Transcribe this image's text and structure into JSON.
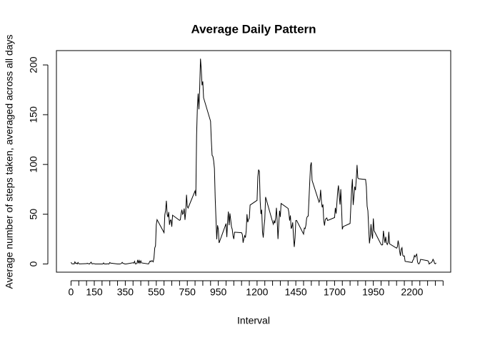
{
  "chart_data": {
    "type": "line",
    "title": "Average Daily Pattern",
    "x_label": "Interval",
    "y_label": "Average number of steps taken, averaged across all days",
    "x": [
      0,
      5,
      10,
      15,
      20,
      25,
      30,
      35,
      40,
      45,
      50,
      55,
      100,
      105,
      110,
      115,
      120,
      125,
      130,
      135,
      140,
      145,
      150,
      155,
      200,
      205,
      210,
      215,
      220,
      225,
      230,
      235,
      240,
      245,
      250,
      255,
      300,
      305,
      310,
      315,
      320,
      325,
      330,
      335,
      340,
      345,
      350,
      355,
      400,
      405,
      410,
      415,
      420,
      425,
      430,
      435,
      440,
      445,
      450,
      455,
      500,
      505,
      510,
      515,
      520,
      525,
      530,
      535,
      540,
      545,
      550,
      555,
      600,
      605,
      610,
      615,
      620,
      625,
      630,
      635,
      640,
      645,
      650,
      655,
      700,
      705,
      710,
      715,
      720,
      725,
      730,
      735,
      740,
      745,
      750,
      755,
      800,
      805,
      810,
      815,
      820,
      825,
      830,
      835,
      840,
      845,
      850,
      855,
      900,
      905,
      910,
      915,
      920,
      925,
      930,
      935,
      940,
      945,
      950,
      955,
      1000,
      1005,
      1010,
      1015,
      1020,
      1025,
      1030,
      1035,
      1040,
      1045,
      1050,
      1055,
      1100,
      1105,
      1110,
      1115,
      1120,
      1125,
      1130,
      1135,
      1140,
      1145,
      1150,
      1155,
      1200,
      1205,
      1210,
      1215,
      1220,
      1225,
      1230,
      1235,
      1240,
      1245,
      1250,
      1255,
      1300,
      1305,
      1310,
      1315,
      1320,
      1325,
      1330,
      1335,
      1340,
      1345,
      1350,
      1355,
      1400,
      1405,
      1410,
      1415,
      1420,
      1425,
      1430,
      1435,
      1440,
      1445,
      1450,
      1455,
      1500,
      1505,
      1510,
      1515,
      1520,
      1525,
      1530,
      1535,
      1540,
      1545,
      1550,
      1555,
      1600,
      1605,
      1610,
      1615,
      1620,
      1625,
      1630,
      1635,
      1640,
      1645,
      1650,
      1655,
      1700,
      1705,
      1710,
      1715,
      1720,
      1725,
      1730,
      1735,
      1740,
      1745,
      1750,
      1755,
      1800,
      1805,
      1810,
      1815,
      1820,
      1825,
      1830,
      1835,
      1840,
      1845,
      1850,
      1855,
      1900,
      1905,
      1910,
      1915,
      1920,
      1925,
      1930,
      1935,
      1940,
      1945,
      1950,
      1955,
      2000,
      2005,
      2010,
      2015,
      2020,
      2025,
      2030,
      2035,
      2040,
      2045,
      2050,
      2055,
      2100,
      2105,
      2110,
      2115,
      2120,
      2125,
      2130,
      2135,
      2140,
      2145,
      2150,
      2155,
      2200,
      2205,
      2210,
      2215,
      2220,
      2225,
      2230,
      2235,
      2240,
      2245,
      2250,
      2255,
      2300,
      2305,
      2310,
      2315,
      2320,
      2325,
      2330,
      2335,
      2340,
      2345,
      2350,
      2355
    ],
    "series": [
      {
        "color": "#000000",
        "values": [
          1.7,
          0.3,
          0.1,
          0.2,
          0,
          2.1,
          0.5,
          0.9,
          0,
          1.5,
          0.3,
          0.1,
          0.3,
          0.7,
          0.2,
          0.3,
          0,
          1.1,
          1.8,
          0.2,
          0.2,
          0.4,
          0.3,
          0,
          0,
          0,
          1.1,
          0,
          0,
          0.1,
          0,
          0.2,
          0,
          0,
          1.5,
          0.9,
          0,
          0,
          0,
          0,
          0.2,
          0.6,
          1.6,
          0.6,
          0.5,
          0.1,
          0,
          0,
          1.2,
          0.9,
          2.6,
          0,
          0.3,
          0.4,
          4.1,
          0.7,
          3.5,
          0.8,
          3.1,
          1.1,
          0,
          1.6,
          3,
          2.2,
          3.3,
          3,
          2.1,
          6.1,
          16,
          18.3,
          39.5,
          44.5,
          31.5,
          49.3,
          53.8,
          63.5,
          50,
          47.1,
          52.2,
          39.3,
          44,
          44.2,
          37.4,
          49,
          43.8,
          44.4,
          50.5,
          54.5,
          49.9,
          51,
          55.7,
          44.3,
          52.3,
          69.5,
          57.8,
          56.2,
          73.4,
          68.2,
          129.4,
          157.5,
          171.2,
          155.4,
          177.3,
          206.2,
          195.9,
          179.6,
          183.4,
          167,
          143.5,
          124,
          109.1,
          108.1,
          103.7,
          95.9,
          66.2,
          45.2,
          24.8,
          38.8,
          35,
          21.1,
          40.6,
          27,
          42.4,
          52.7,
          38.9,
          50.8,
          44.3,
          37.4,
          34.7,
          28.3,
          25.1,
          31.9,
          31.4,
          29.7,
          21.3,
          25.5,
          28.4,
          26.5,
          33.4,
          50,
          42,
          44.6,
          46,
          59.2,
          63.9,
          87.7,
          94.8,
          92.8,
          63.4,
          50.2,
          54.5,
          32.4,
          26.5,
          37.7,
          45.1,
          67.3,
          42.3,
          39.9,
          43.3,
          41,
          46.2,
          56.4,
          42.8,
          25.1,
          40,
          53.5,
          47.3,
          60.8,
          55.8,
          52,
          43.6,
          48.7,
          35.5,
          37.5,
          41.8,
          27.5,
          17.1,
          26.1,
          43.6,
          43.8,
          30,
          36.1,
          35.5,
          38.8,
          46,
          47.8,
          48.1,
          65.3,
          82.9,
          98.7,
          102.1,
          84,
          62.1,
          64.1,
          74.5,
          63.2,
          56.9,
          59.8,
          43.9,
          38.6,
          44.7,
          45.5,
          46.2,
          43.7,
          46.6,
          56.3,
          50.7,
          61.2,
          72.7,
          78.9,
          68.9,
          59.7,
          75.1,
          56.5,
          34.8,
          37.5,
          40.7,
          58,
          74.7,
          85.3,
          59.3,
          67.8,
          77.7,
          74.2,
          85.3,
          99.5,
          86.6,
          85.6,
          84.9,
          77.8,
          58,
          53.4,
          36.3,
          20.7,
          27.4,
          40,
          30.2,
          25.5,
          45.7,
          33.5,
          19.6,
          19,
          19.3,
          33.3,
          26.8,
          21.2,
          27.3,
          21.3,
          19.5,
          21.3,
          32.3,
          20.2,
          15.9,
          17.2,
          23.5,
          19.2,
          12.5,
          8.2,
          14.7,
          16.3,
          8.7,
          7.8,
          8.1,
          2.6,
          1.5,
          3.7,
          4.8,
          8.5,
          7.1,
          8.7,
          9.8,
          2.2,
          0.3,
          0.1,
          1.6,
          4.6,
          3.3,
          2.8,
          0,
          0.8,
          1,
          1.6,
          2.6,
          4.7,
          3.3,
          0.6,
          0.2,
          1.1
        ]
      }
    ],
    "xlim": [
      -94.2,
      2449.2
    ],
    "ylim": [
      -8.25,
      214.4
    ],
    "xticks": [
      0,
      {
        "value": 50,
        "label": null
      },
      {
        "value": 100,
        "label": null
      },
      150,
      {
        "value": 200,
        "label": null
      },
      {
        "value": 250,
        "label": null
      },
      {
        "value": 300,
        "label": null
      },
      350,
      {
        "value": 400,
        "label": null
      },
      {
        "value": 450,
        "label": null
      },
      {
        "value": 500,
        "label": null
      },
      550,
      {
        "value": 600,
        "label": null
      },
      {
        "value": 650,
        "label": null
      },
      {
        "value": 700,
        "label": null
      },
      750,
      {
        "value": 800,
        "label": null
      },
      {
        "value": 850,
        "label": null
      },
      {
        "value": 900,
        "label": null
      },
      950,
      {
        "value": 1000,
        "label": null
      },
      {
        "value": 1050,
        "label": null
      },
      {
        "value": 1100,
        "label": null
      },
      {
        "value": 1150,
        "label": null
      },
      1200,
      {
        "value": 1250,
        "label": null
      },
      {
        "value": 1300,
        "label": null
      },
      {
        "value": 1350,
        "label": null
      },
      {
        "value": 1400,
        "label": null
      },
      1450,
      {
        "value": 1500,
        "label": null
      },
      {
        "value": 1550,
        "label": null
      },
      {
        "value": 1600,
        "label": null
      },
      {
        "value": 1650,
        "label": null
      },
      1700,
      {
        "value": 1750,
        "label": null
      },
      {
        "value": 1800,
        "label": null
      },
      {
        "value": 1850,
        "label": null
      },
      {
        "value": 1900,
        "label": null
      },
      1950,
      {
        "value": 2000,
        "label": null
      },
      {
        "value": 2050,
        "label": null
      },
      {
        "value": 2100,
        "label": null
      },
      {
        "value": 2150,
        "label": null
      },
      2200,
      {
        "value": 2250,
        "label": null
      },
      {
        "value": 2300,
        "label": null
      },
      {
        "value": 2350,
        "label": null
      },
      {
        "value": 2400,
        "label": null
      }
    ],
    "yticks": [
      0,
      50,
      100,
      150,
      200
    ]
  }
}
